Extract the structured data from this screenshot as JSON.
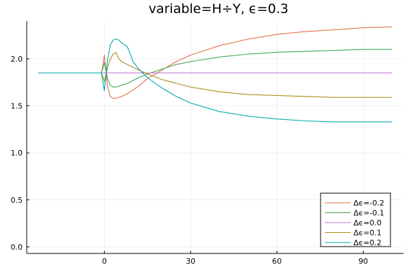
{
  "chart_data": {
    "type": "line",
    "title": "variable=H÷Y, ϵ=0.3",
    "xlabel": "",
    "ylabel": "",
    "xlim": [
      -27,
      104
    ],
    "ylim": [
      -0.07,
      2.4
    ],
    "grid": true,
    "legend_position": "bottom-right",
    "x_ticks": [
      0,
      30,
      60,
      90
    ],
    "x_tick_labels": [
      "0",
      "30",
      "60",
      "90"
    ],
    "y_ticks": [
      0.0,
      0.5,
      1.0,
      1.5,
      2.0
    ],
    "y_tick_labels": [
      "0.0",
      "0.5",
      "1.0",
      "1.5",
      "2.0"
    ],
    "series": [
      {
        "name": "Δϵ=-0.2",
        "color": "#e26f46",
        "points": [
          [
            -23,
            1.85
          ],
          [
            -1,
            1.85
          ],
          [
            0,
            2.04
          ],
          [
            1,
            1.72
          ],
          [
            2,
            1.6
          ],
          [
            3,
            1.58
          ],
          [
            4,
            1.58
          ],
          [
            6,
            1.6
          ],
          [
            8,
            1.63
          ],
          [
            10,
            1.67
          ],
          [
            12,
            1.71
          ],
          [
            15,
            1.79
          ],
          [
            20,
            1.88
          ],
          [
            25,
            1.97
          ],
          [
            30,
            2.04
          ],
          [
            40,
            2.14
          ],
          [
            50,
            2.21
          ],
          [
            60,
            2.26
          ],
          [
            70,
            2.29
          ],
          [
            80,
            2.31
          ],
          [
            90,
            2.33
          ],
          [
            100,
            2.34
          ]
        ]
      },
      {
        "name": "Δϵ=-0.1",
        "color": "#3da44d",
        "points": [
          [
            -23,
            1.85
          ],
          [
            -1,
            1.85
          ],
          [
            0,
            1.96
          ],
          [
            1,
            1.8
          ],
          [
            2,
            1.72
          ],
          [
            3,
            1.7
          ],
          [
            4,
            1.7
          ],
          [
            6,
            1.72
          ],
          [
            8,
            1.74
          ],
          [
            10,
            1.77
          ],
          [
            12,
            1.8
          ],
          [
            15,
            1.84
          ],
          [
            20,
            1.89
          ],
          [
            25,
            1.94
          ],
          [
            30,
            1.97
          ],
          [
            40,
            2.02
          ],
          [
            50,
            2.05
          ],
          [
            60,
            2.07
          ],
          [
            70,
            2.08
          ],
          [
            80,
            2.09
          ],
          [
            90,
            2.1
          ],
          [
            100,
            2.1
          ]
        ]
      },
      {
        "name": "Δϵ=0.0",
        "color": "#c271d2",
        "points": [
          [
            -23,
            1.85
          ],
          [
            100,
            1.85
          ]
        ]
      },
      {
        "name": "Δϵ=0.1",
        "color": "#ac8d18",
        "points": [
          [
            -23,
            1.85
          ],
          [
            -1,
            1.85
          ],
          [
            0,
            1.76
          ],
          [
            1,
            1.9
          ],
          [
            2,
            1.99
          ],
          [
            3,
            2.05
          ],
          [
            4,
            2.07
          ],
          [
            5,
            2.0
          ],
          [
            6,
            1.97
          ],
          [
            8,
            1.94
          ],
          [
            10,
            1.91
          ],
          [
            12,
            1.88
          ],
          [
            15,
            1.84
          ],
          [
            20,
            1.78
          ],
          [
            25,
            1.74
          ],
          [
            30,
            1.7
          ],
          [
            40,
            1.65
          ],
          [
            50,
            1.62
          ],
          [
            60,
            1.61
          ],
          [
            70,
            1.6
          ],
          [
            80,
            1.59
          ],
          [
            90,
            1.59
          ],
          [
            100,
            1.59
          ]
        ]
      },
      {
        "name": "Δϵ=0.2",
        "color": "#00a9ad",
        "points": [
          [
            -23,
            1.85
          ],
          [
            -1,
            1.85
          ],
          [
            0,
            1.66
          ],
          [
            1,
            1.97
          ],
          [
            2,
            2.14
          ],
          [
            3,
            2.2
          ],
          [
            4,
            2.21
          ],
          [
            5,
            2.2
          ],
          [
            6,
            2.17
          ],
          [
            7,
            2.15
          ],
          [
            8,
            2.13
          ],
          [
            9,
            2.05
          ],
          [
            10,
            1.97
          ],
          [
            12,
            1.89
          ],
          [
            15,
            1.8
          ],
          [
            20,
            1.69
          ],
          [
            25,
            1.6
          ],
          [
            30,
            1.53
          ],
          [
            40,
            1.44
          ],
          [
            50,
            1.39
          ],
          [
            60,
            1.36
          ],
          [
            70,
            1.34
          ],
          [
            80,
            1.33
          ],
          [
            90,
            1.33
          ],
          [
            100,
            1.33
          ]
        ]
      }
    ]
  }
}
